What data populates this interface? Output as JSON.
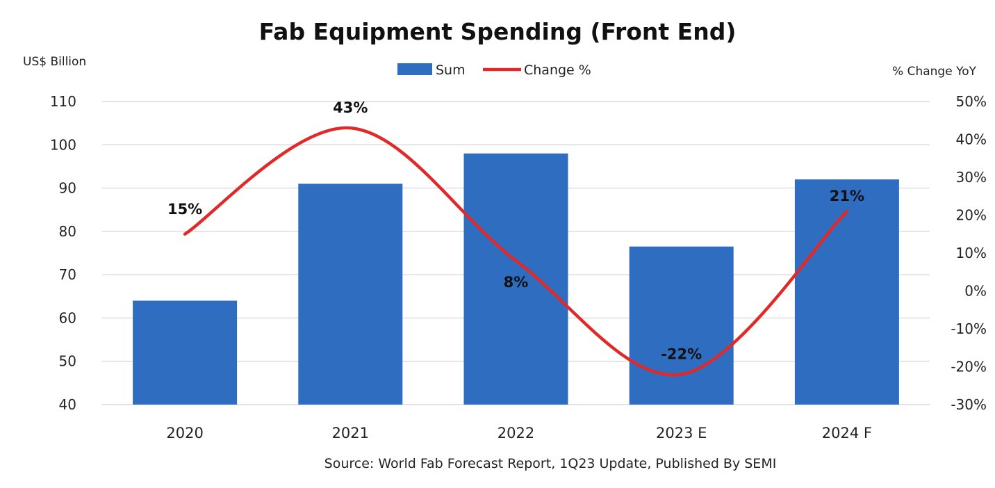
{
  "chart_data": {
    "type": "bar",
    "title": "Fab Equipment Spending (Front End)",
    "ylabel": "US$ Billion",
    "y2label": "% Change YoY",
    "source": "Source: World Fab Forecast Report, 1Q23 Update, Published By SEMI",
    "categories": [
      "2020",
      "2021",
      "2022",
      "2023 E",
      "2024 F"
    ],
    "series": [
      {
        "name": "Sum",
        "type": "bar",
        "axis": "left",
        "color": "#2e6dbf",
        "values": [
          64,
          91,
          98,
          76.5,
          92
        ]
      },
      {
        "name": "Change %",
        "type": "line",
        "axis": "right",
        "color": "#e02a2a",
        "values": [
          15,
          43,
          8,
          -22,
          21
        ],
        "labels": [
          "15%",
          "43%",
          "8%",
          "-22%",
          "21%"
        ]
      }
    ],
    "ylim": [
      40,
      110
    ],
    "yticks": [
      "40",
      "50",
      "60",
      "70",
      "80",
      "90",
      "100",
      "110"
    ],
    "y2lim": [
      -30,
      50
    ],
    "y2ticks": [
      "-30%",
      "-20%",
      "-10%",
      "0%",
      "10%",
      "20%",
      "30%",
      "40%",
      "50%"
    ],
    "grid": true,
    "legend": "top-center"
  }
}
